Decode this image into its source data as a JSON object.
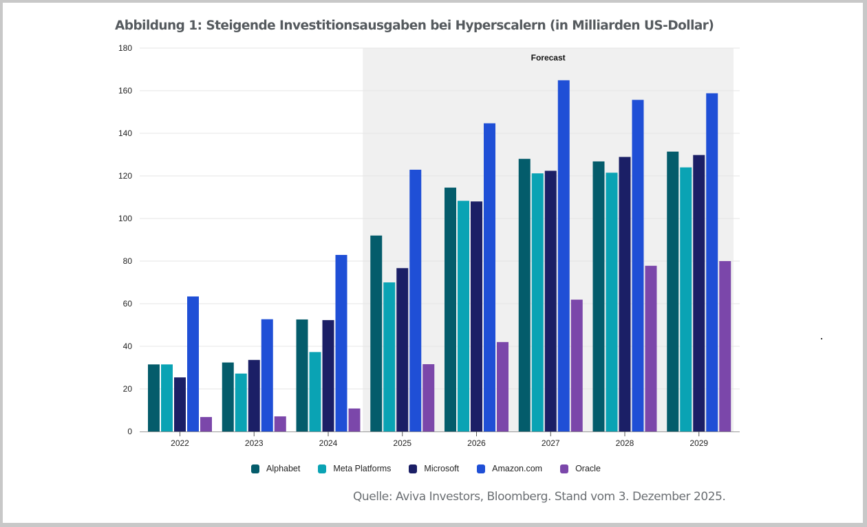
{
  "title": "Abbildung 1: Steigende Investitionsausgaben bei Hyperscalern (in Milliarden US-Dollar)",
  "source": "Quelle: Aviva Investors, Bloomberg. Stand vom 3. Dezember 2025.",
  "chart_data": {
    "type": "bar",
    "title": "Abbildung 1: Steigende Investitionsausgaben bei Hyperscalern (in Milliarden US-Dollar)",
    "xlabel": "",
    "ylabel": "",
    "ylim": [
      0,
      180
    ],
    "yticks": [
      0,
      20,
      40,
      60,
      80,
      100,
      120,
      140,
      160,
      180
    ],
    "grid": true,
    "legend_position": "bottom",
    "categories": [
      "2022",
      "2023",
      "2024",
      "2025",
      "2026",
      "2027",
      "2028",
      "2029"
    ],
    "annotation": {
      "label": "Forecast",
      "from_category": "2025",
      "to_category": "2029",
      "color": "#f0f0f0"
    },
    "series": [
      {
        "name": "Alphabet",
        "color": "#045c6b",
        "values": [
          31.5,
          32.4,
          52.6,
          92.0,
          114.5,
          128.0,
          126.8,
          131.4
        ]
      },
      {
        "name": "Meta Platforms",
        "color": "#0aa3b4",
        "values": [
          31.5,
          27.2,
          37.3,
          70.0,
          108.3,
          121.2,
          121.5,
          124.0
        ]
      },
      {
        "name": "Microsoft",
        "color": "#1b1f66",
        "values": [
          25.4,
          33.6,
          52.3,
          76.7,
          108.0,
          122.4,
          128.9,
          129.8
        ]
      },
      {
        "name": "Amazon.com",
        "color": "#1f4fd6",
        "values": [
          63.4,
          52.7,
          82.9,
          122.9,
          144.7,
          164.9,
          155.7,
          158.8
        ]
      },
      {
        "name": "Oracle",
        "color": "#7b47aa",
        "values": [
          6.8,
          7.1,
          10.8,
          31.6,
          42.0,
          61.9,
          77.8,
          80.0
        ]
      }
    ]
  }
}
